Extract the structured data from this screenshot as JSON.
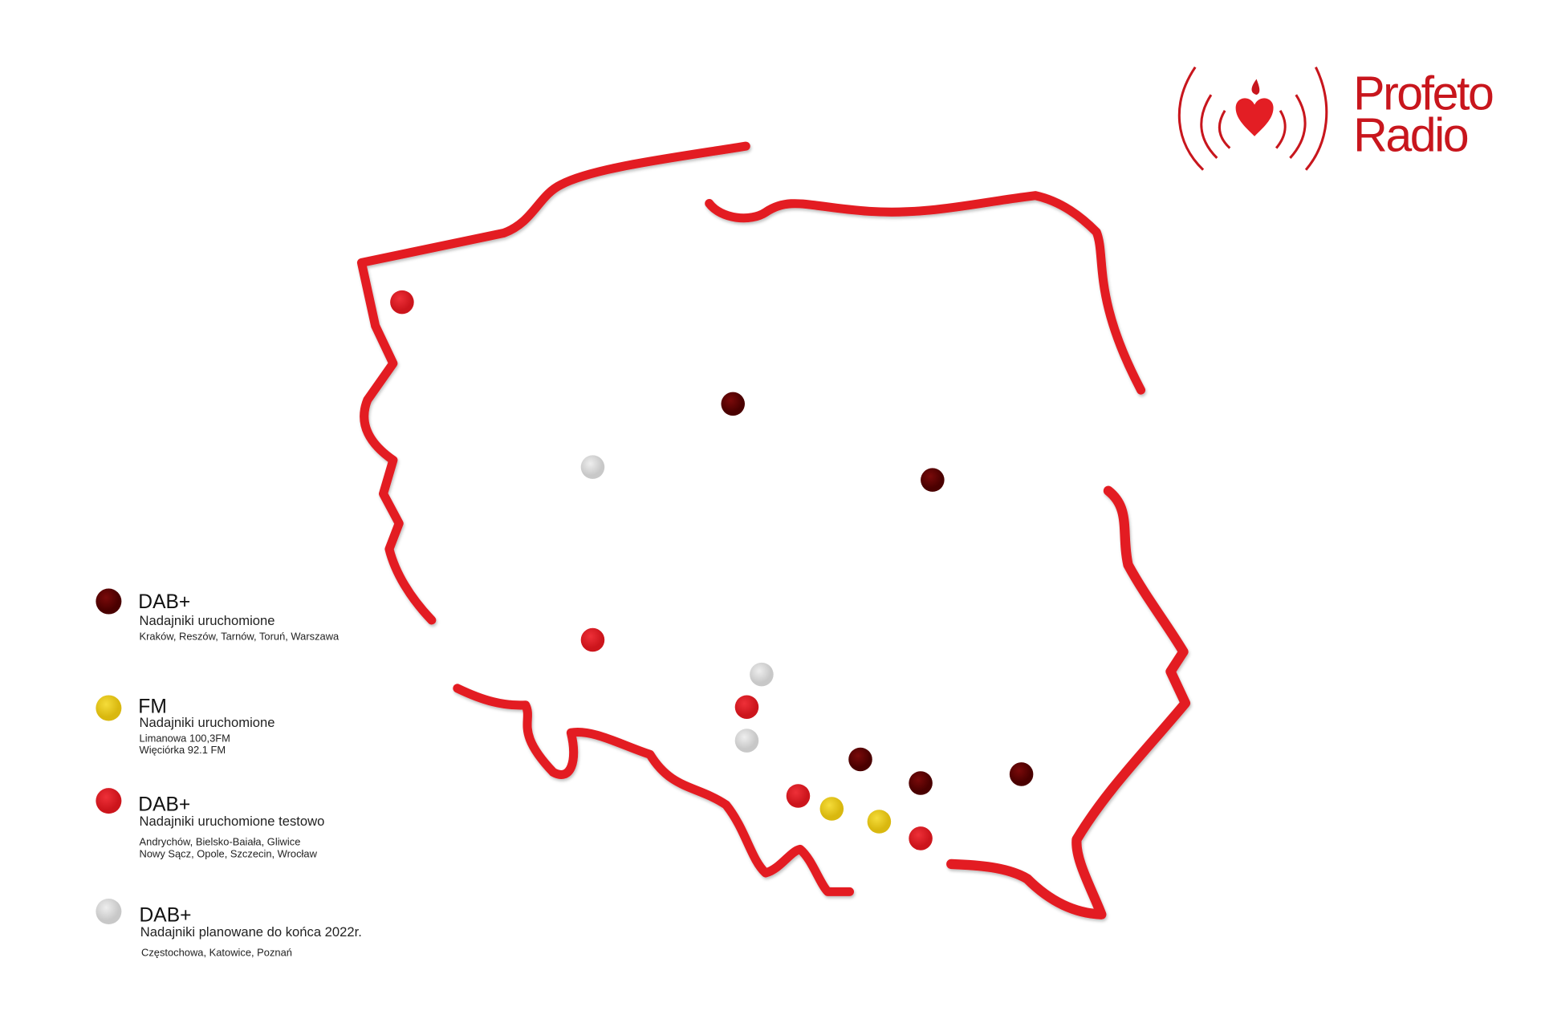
{
  "logo": {
    "line1": "Profeto",
    "line2": "Radio",
    "color": "#c8161d"
  },
  "colors": {
    "border": "#e31e24",
    "dab_active": "#5e0000",
    "fm": "#e8c920",
    "dab_test": "#dc1f26",
    "dab_planned": "#d8d8d8"
  },
  "legend": [
    {
      "title": "DAB+",
      "subtitle": "Nadajniki uruchomione",
      "lines": [
        "Kraków, Reszów, Tarnów, Toruń, Warszawa"
      ],
      "color": "#5e0000"
    },
    {
      "title": "FM",
      "subtitle": "Nadajniki uruchomione",
      "lines": [
        "Limanowa 100,3FM",
        "Więciórka 92.1 FM"
      ],
      "color": "#e8c920"
    },
    {
      "title": "DAB+",
      "subtitle": "Nadajniki uruchomione testowo",
      "lines": [
        "Andrychów, Bielsko-Baiała, Gliwice",
        "Nowy Sącz, Opole, Szczecin, Wrocław"
      ],
      "color": "#dc1f26"
    },
    {
      "title": "DAB+",
      "subtitle": "Nadajniki planowane do końca 2022r.",
      "lines": [
        "Częstochowa, Katowice, Poznań"
      ],
      "color": "#d8d8d8"
    }
  ]
}
